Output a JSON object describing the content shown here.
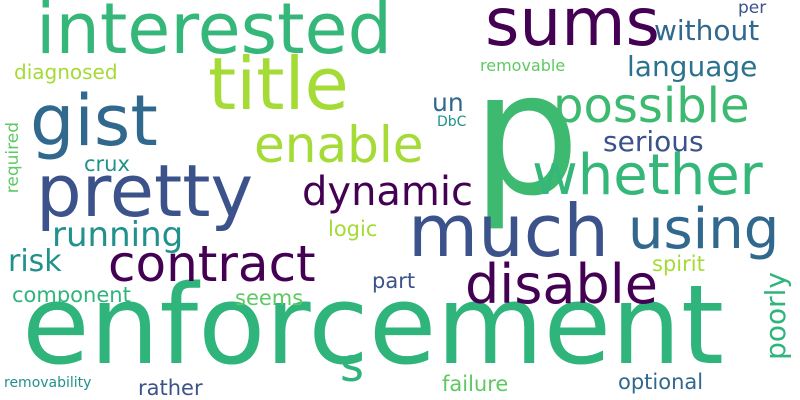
{
  "colors": {
    "background": "#ffffff",
    "palette": [
      "#440154",
      "#3b528b",
      "#21918c",
      "#2fb47c",
      "#5ec962",
      "#a5db36",
      "#31688e",
      "#1f9e89"
    ]
  },
  "words": [
    {
      "text": "enforcement",
      "color": "#2fb47c"
    },
    {
      "text": "p",
      "color": "#3dba6f"
    },
    {
      "text": "interested",
      "color": "#35b779"
    },
    {
      "text": "sums",
      "color": "#440154"
    },
    {
      "text": "title",
      "color": "#a5db36"
    },
    {
      "text": "gist",
      "color": "#31688e"
    },
    {
      "text": "pretty",
      "color": "#3b528b"
    },
    {
      "text": "much",
      "color": "#3b528b"
    },
    {
      "text": "whether",
      "color": "#35b779"
    },
    {
      "text": "possible",
      "color": "#3dba6f"
    },
    {
      "text": "contract",
      "color": "#440154"
    },
    {
      "text": "disable",
      "color": "#440154"
    },
    {
      "text": "using",
      "color": "#31688e"
    },
    {
      "text": "enable",
      "color": "#a5db36"
    },
    {
      "text": "dynamic",
      "color": "#440154"
    },
    {
      "text": "without",
      "color": "#31688e"
    },
    {
      "text": "language",
      "color": "#2c728e"
    },
    {
      "text": "serious",
      "color": "#3b528b"
    },
    {
      "text": "running",
      "color": "#21918c"
    },
    {
      "text": "risk",
      "color": "#21918c"
    },
    {
      "text": "component",
      "color": "#2fb47c"
    },
    {
      "text": "seems",
      "color": "#5ec962"
    },
    {
      "text": "part",
      "color": "#3b528b"
    },
    {
      "text": "spirit",
      "color": "#a5db36"
    },
    {
      "text": "logic",
      "color": "#a5db36"
    },
    {
      "text": "crux",
      "color": "#21918c"
    },
    {
      "text": "un",
      "color": "#31688e"
    },
    {
      "text": "DbC",
      "color": "#21918c"
    },
    {
      "text": "diagnosed",
      "color": "#a5db36"
    },
    {
      "text": "removable",
      "color": "#5ec962"
    },
    {
      "text": "per",
      "color": "#3b528b"
    },
    {
      "text": "required",
      "color": "#5ec962"
    },
    {
      "text": "poorly",
      "color": "#2fb47c"
    },
    {
      "text": "s",
      "color": "#2fb47c"
    },
    {
      "text": "failure",
      "color": "#5ec962"
    },
    {
      "text": "optional",
      "color": "#31688e"
    },
    {
      "text": "rather",
      "color": "#3b528b"
    },
    {
      "text": "removability",
      "color": "#21918c"
    }
  ]
}
